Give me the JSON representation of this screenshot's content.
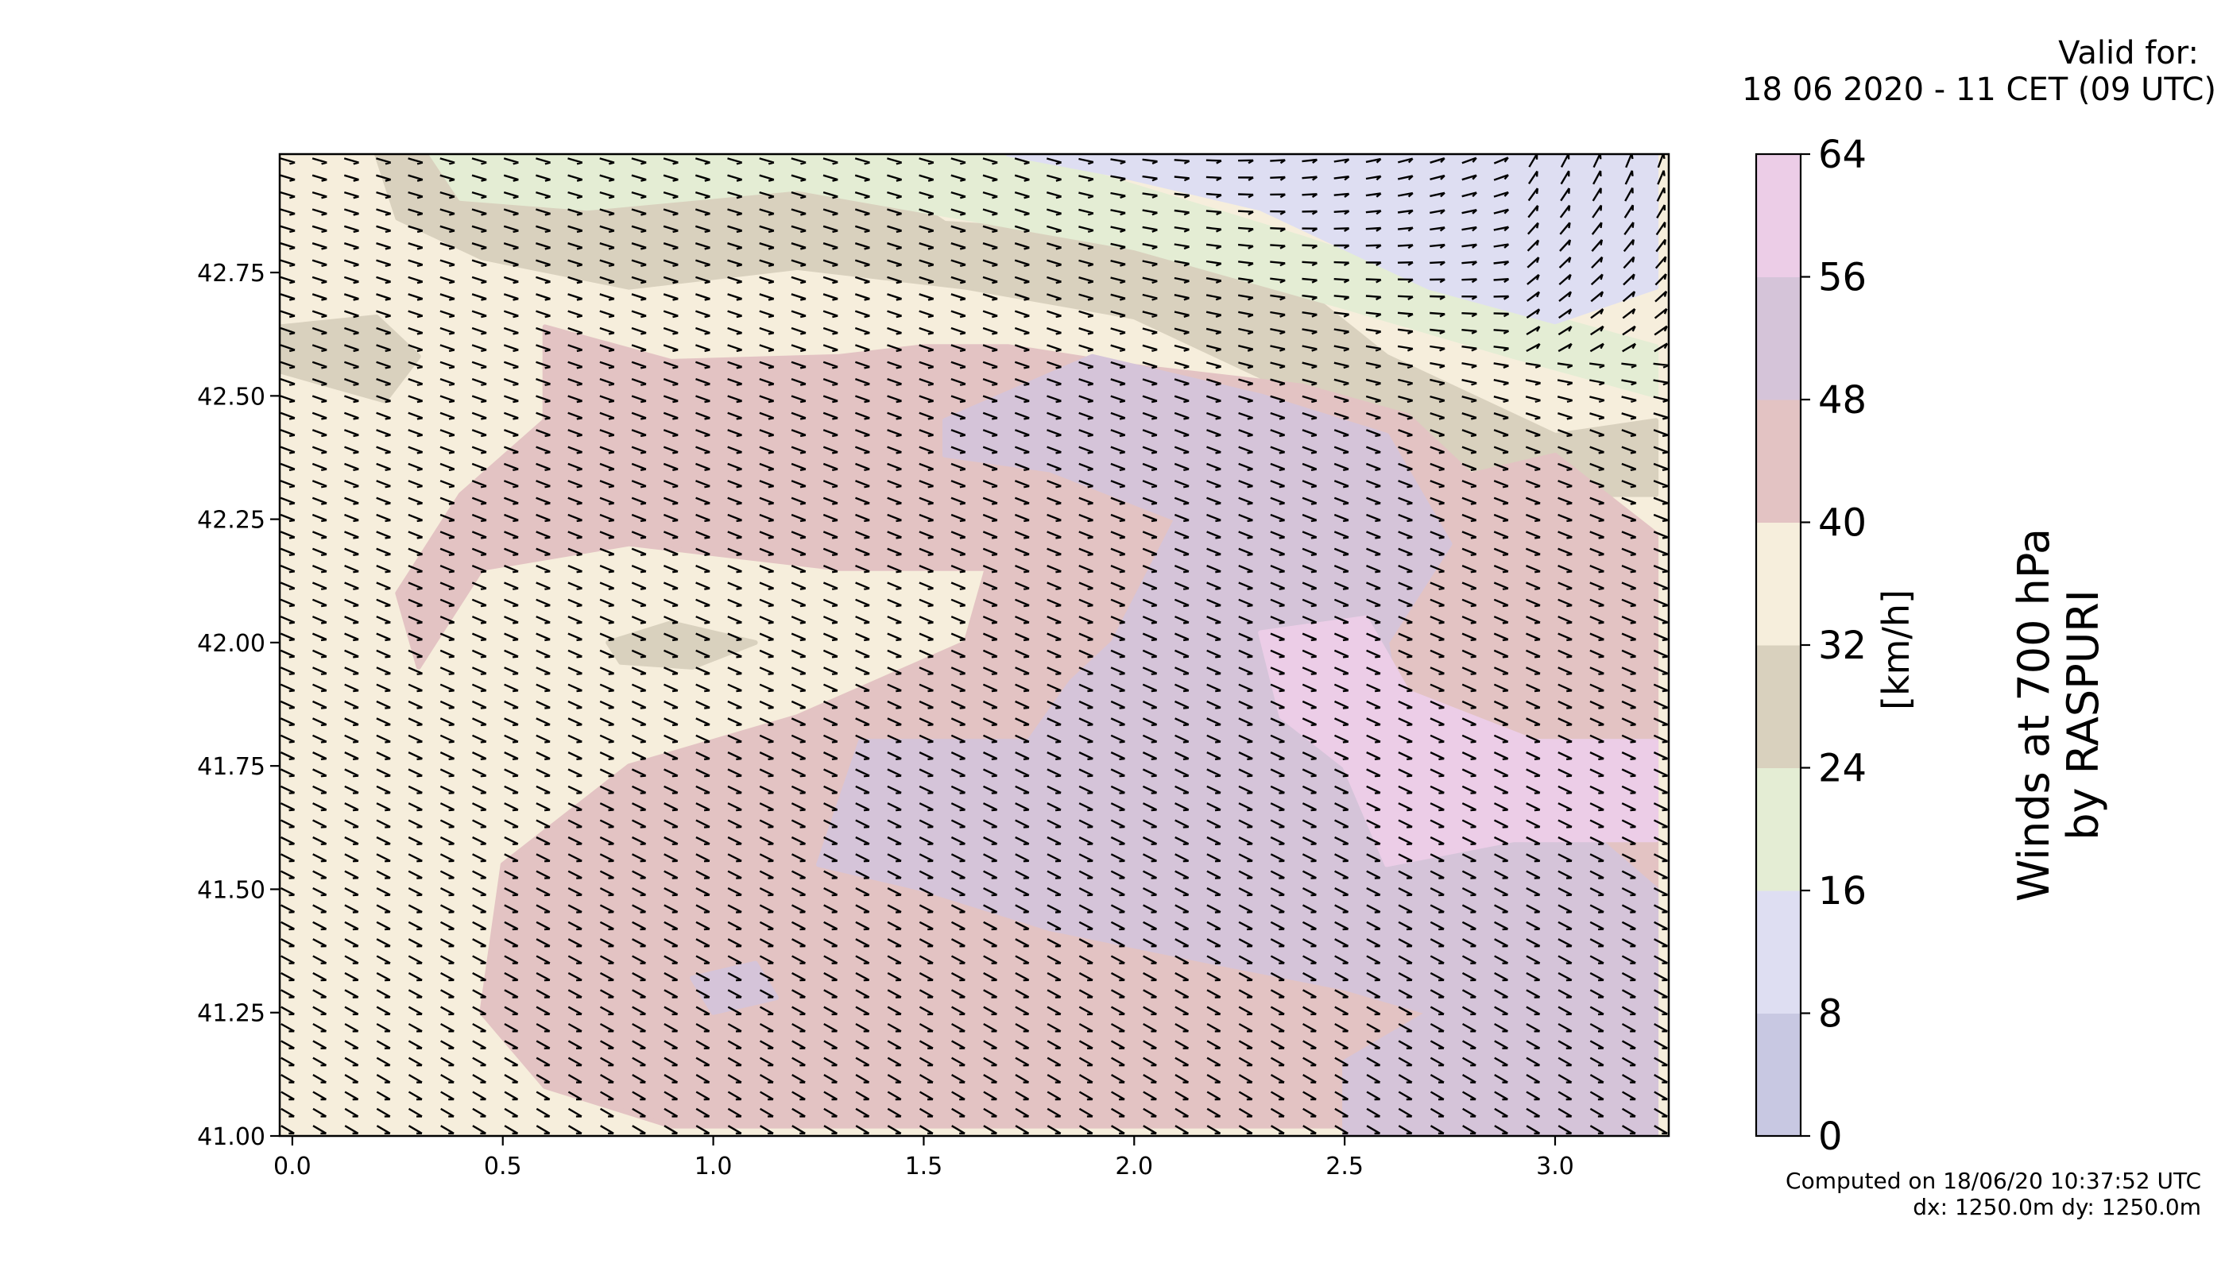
{
  "header": {
    "valid_label": "Valid for:",
    "valid_date": "18 06 2020 - 11 CET (09 UTC)"
  },
  "footer": {
    "computed": "Computed on 18/06/20 10:37:52 UTC",
    "grid": "dx: 1250.0m dy: 1250.0m"
  },
  "chart_data": {
    "type": "heatmap",
    "title": "Winds at 700 hPa\nby RASPURI",
    "title_lines": [
      "Winds at 700 hPa",
      "by RASPURI"
    ],
    "xlim": [
      -0.03,
      3.27
    ],
    "ylim": [
      41.0,
      42.99
    ],
    "x_ticks": [
      "0.0",
      "0.5",
      "1.0",
      "1.5",
      "2.0",
      "2.5",
      "3.0"
    ],
    "x_tick_values": [
      0.0,
      0.5,
      1.0,
      1.5,
      2.0,
      2.5,
      3.0
    ],
    "y_ticks": [
      "41.00",
      "41.25",
      "41.50",
      "41.75",
      "42.00",
      "42.25",
      "42.50",
      "42.75"
    ],
    "y_tick_values": [
      41.0,
      41.25,
      41.5,
      41.75,
      42.0,
      42.25,
      42.5,
      42.75
    ],
    "colorbar": {
      "label": "[km/h]",
      "levels": [
        0,
        8,
        16,
        24,
        32,
        40,
        48,
        56,
        64
      ],
      "tick_labels": [
        "0",
        "8",
        "16",
        "24",
        "32",
        "40",
        "48",
        "56",
        "64"
      ],
      "colors": [
        "#c8c8e2",
        "#dedef2",
        "#e4edd4",
        "#d9d1be",
        "#f6eedc",
        "#e3c3c3",
        "#d5c4d9",
        "#eccde7"
      ]
    },
    "regions": [
      {
        "level_bin": 4,
        "note": "32-40 km/h",
        "poly": [
          [
            -0.03,
            41.0
          ],
          [
            3.27,
            41.0
          ],
          [
            3.27,
            42.99
          ],
          [
            -0.03,
            42.99
          ]
        ]
      },
      {
        "level_bin": 3,
        "note": "24-32 km/h",
        "poly": [
          [
            0.2,
            42.99
          ],
          [
            1.3,
            42.99
          ],
          [
            1.55,
            42.85
          ],
          [
            2.1,
            42.82
          ],
          [
            2.35,
            42.75
          ],
          [
            2.6,
            42.58
          ],
          [
            2.8,
            42.5
          ],
          [
            3.0,
            42.42
          ],
          [
            3.24,
            42.45
          ],
          [
            3.24,
            42.3
          ],
          [
            3.0,
            42.3
          ],
          [
            2.7,
            42.38
          ],
          [
            2.35,
            42.52
          ],
          [
            2.0,
            42.66
          ],
          [
            1.6,
            42.72
          ],
          [
            1.2,
            42.76
          ],
          [
            0.8,
            42.72
          ],
          [
            0.45,
            42.78
          ],
          [
            0.25,
            42.86
          ]
        ]
      },
      {
        "level_bin": 3,
        "note": "24-32 km/h",
        "poly": [
          [
            -0.03,
            42.64
          ],
          [
            0.2,
            42.66
          ],
          [
            0.3,
            42.58
          ],
          [
            0.22,
            42.49
          ],
          [
            -0.03,
            42.55
          ]
        ]
      },
      {
        "level_bin": 3,
        "note": "24-32 km/h",
        "poly": [
          [
            0.75,
            42.0
          ],
          [
            0.9,
            42.04
          ],
          [
            1.1,
            42.0
          ],
          [
            0.95,
            41.95
          ],
          [
            0.78,
            41.96
          ]
        ]
      },
      {
        "level_bin": 2,
        "note": "16-24 km/h",
        "poly": [
          [
            0.33,
            42.99
          ],
          [
            1.75,
            42.99
          ],
          [
            2.4,
            42.82
          ],
          [
            2.9,
            42.68
          ],
          [
            3.24,
            42.6
          ],
          [
            3.24,
            42.5
          ],
          [
            2.9,
            42.58
          ],
          [
            2.5,
            42.68
          ],
          [
            2.0,
            42.8
          ],
          [
            1.6,
            42.86
          ],
          [
            1.2,
            42.92
          ],
          [
            0.7,
            42.88
          ],
          [
            0.4,
            42.9
          ]
        ]
      },
      {
        "level_bin": 1,
        "note": "8-16 km/h",
        "poly": [
          [
            1.7,
            42.99
          ],
          [
            3.24,
            42.99
          ],
          [
            3.24,
            42.72
          ],
          [
            3.0,
            42.65
          ],
          [
            2.7,
            42.72
          ],
          [
            2.3,
            42.88
          ],
          [
            1.95,
            42.95
          ]
        ]
      },
      {
        "level_bin": 5,
        "note": "40-48 km/h",
        "poly": [
          [
            0.6,
            42.64
          ],
          [
            0.9,
            42.57
          ],
          [
            1.3,
            42.58
          ],
          [
            1.5,
            42.6
          ],
          [
            1.7,
            42.6
          ],
          [
            2.0,
            42.56
          ],
          [
            2.4,
            42.52
          ],
          [
            2.65,
            42.46
          ],
          [
            2.8,
            42.34
          ],
          [
            3.0,
            42.38
          ],
          [
            3.24,
            42.22
          ],
          [
            3.24,
            41.3
          ],
          [
            3.1,
            41.42
          ],
          [
            3.0,
            41.28
          ],
          [
            2.7,
            41.18
          ],
          [
            2.5,
            41.15
          ],
          [
            2.5,
            41.02
          ],
          [
            0.9,
            41.02
          ],
          [
            0.6,
            41.1
          ],
          [
            0.45,
            41.25
          ],
          [
            0.5,
            41.55
          ],
          [
            0.8,
            41.75
          ],
          [
            1.2,
            41.85
          ],
          [
            1.6,
            42.0
          ],
          [
            1.65,
            42.15
          ],
          [
            1.3,
            42.15
          ],
          [
            0.8,
            42.2
          ],
          [
            0.45,
            42.15
          ],
          [
            0.3,
            41.95
          ],
          [
            0.25,
            42.1
          ],
          [
            0.4,
            42.3
          ],
          [
            0.6,
            42.45
          ]
        ]
      },
      {
        "level_bin": 6,
        "note": "48-56 km/h",
        "poly": [
          [
            1.55,
            42.45
          ],
          [
            1.9,
            42.58
          ],
          [
            2.3,
            42.5
          ],
          [
            2.6,
            42.42
          ],
          [
            2.75,
            42.2
          ],
          [
            2.6,
            42.0
          ],
          [
            2.65,
            41.75
          ],
          [
            2.9,
            41.75
          ],
          [
            3.24,
            41.5
          ],
          [
            3.24,
            41.0
          ],
          [
            2.5,
            41.0
          ],
          [
            2.5,
            41.15
          ],
          [
            2.7,
            41.25
          ],
          [
            2.5,
            41.3
          ],
          [
            2.2,
            41.35
          ],
          [
            1.8,
            41.42
          ],
          [
            1.5,
            41.5
          ],
          [
            1.25,
            41.55
          ],
          [
            1.35,
            41.8
          ],
          [
            1.75,
            41.8
          ],
          [
            1.85,
            41.92
          ],
          [
            1.95,
            42.0
          ],
          [
            2.1,
            42.25
          ],
          [
            1.8,
            42.35
          ],
          [
            1.55,
            42.38
          ]
        ]
      },
      {
        "level_bin": 6,
        "note": "48-56 km/h",
        "poly": [
          [
            0.95,
            41.32
          ],
          [
            1.1,
            41.35
          ],
          [
            1.15,
            41.28
          ],
          [
            1.0,
            41.25
          ]
        ]
      },
      {
        "level_bin": 7,
        "note": "56-64 km/h",
        "poly": [
          [
            2.3,
            42.02
          ],
          [
            2.55,
            42.05
          ],
          [
            2.65,
            41.9
          ],
          [
            2.95,
            41.8
          ],
          [
            3.24,
            41.8
          ],
          [
            3.24,
            41.6
          ],
          [
            2.9,
            41.6
          ],
          [
            2.6,
            41.55
          ],
          [
            2.5,
            41.75
          ],
          [
            2.35,
            41.85
          ]
        ]
      }
    ],
    "wind_field": {
      "units": "km/h",
      "nx": 44,
      "ny": 58,
      "direction_note": "mostly from west/southwest, turning northwesterly in the northeast"
    }
  }
}
